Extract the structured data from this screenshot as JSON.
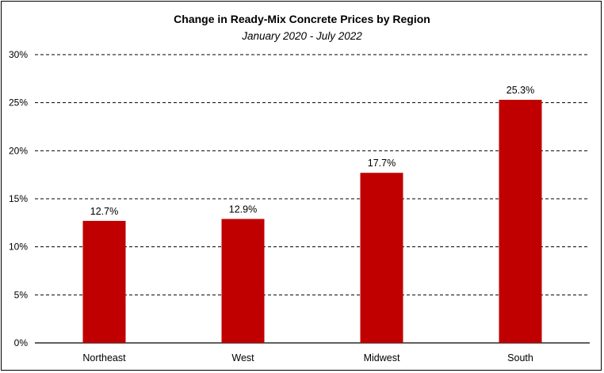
{
  "chart_data": {
    "type": "bar",
    "title": "Change in Ready-Mix Concrete Prices by Region",
    "subtitle": "January 2020 - July 2022",
    "categories": [
      "Northeast",
      "West",
      "Midwest",
      "South"
    ],
    "values": [
      12.7,
      12.9,
      17.7,
      25.3
    ],
    "data_labels": [
      "12.7%",
      "12.9%",
      "17.7%",
      "25.3%"
    ],
    "xlabel": "",
    "ylabel": "",
    "ylim": [
      0,
      30
    ],
    "y_ticks": [
      0,
      5,
      10,
      15,
      20,
      25,
      30
    ],
    "y_tick_labels": [
      "0%",
      "5%",
      "10%",
      "15%",
      "20%",
      "25%",
      "30%"
    ],
    "grid": "horizontal-dashed",
    "legend": "none",
    "bar_color": "#C00000",
    "grid_color": "#000000"
  }
}
